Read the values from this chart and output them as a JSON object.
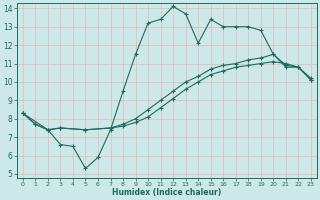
{
  "xlabel": "Humidex (Indice chaleur)",
  "bg_color": "#cce8e8",
  "grid_color": "#e8b8b8",
  "line_color": "#1e6b5e",
  "xlim": [
    -0.5,
    23.5
  ],
  "ylim": [
    4.8,
    14.3
  ],
  "xticks": [
    0,
    1,
    2,
    3,
    4,
    5,
    6,
    7,
    8,
    9,
    10,
    11,
    12,
    13,
    14,
    15,
    16,
    17,
    18,
    19,
    20,
    21,
    22,
    23
  ],
  "yticks": [
    5,
    6,
    7,
    8,
    9,
    10,
    11,
    12,
    13,
    14
  ],
  "line1_x": [
    0,
    1,
    2,
    3,
    4,
    5,
    6,
    7,
    8,
    9,
    10,
    11,
    12,
    13,
    14,
    15,
    16,
    17,
    18,
    19,
    20,
    21,
    22,
    23
  ],
  "line1_y": [
    8.3,
    7.7,
    7.4,
    6.6,
    6.5,
    5.3,
    5.9,
    7.4,
    9.5,
    11.5,
    13.2,
    13.4,
    14.1,
    13.7,
    12.1,
    13.4,
    13.0,
    13.0,
    13.0,
    12.8,
    11.5,
    10.8,
    10.8,
    10.1
  ],
  "line2_x": [
    0,
    1,
    2,
    3,
    5,
    7,
    8,
    9,
    10,
    11,
    12,
    13,
    14,
    15,
    16,
    17,
    18,
    19,
    20,
    21,
    22,
    23
  ],
  "line2_y": [
    8.3,
    7.7,
    7.4,
    7.5,
    7.4,
    7.5,
    7.7,
    8.0,
    8.5,
    9.0,
    9.5,
    10.0,
    10.3,
    10.7,
    10.9,
    11.0,
    11.2,
    11.3,
    11.5,
    10.9,
    10.8,
    10.1
  ],
  "line3_x": [
    0,
    2,
    3,
    5,
    7,
    8,
    9,
    10,
    11,
    12,
    13,
    14,
    15,
    16,
    17,
    18,
    19,
    20,
    21,
    22,
    23
  ],
  "line3_y": [
    8.3,
    7.4,
    7.5,
    7.4,
    7.5,
    7.6,
    7.8,
    8.1,
    8.6,
    9.1,
    9.6,
    10.0,
    10.4,
    10.6,
    10.8,
    10.9,
    11.0,
    11.1,
    11.0,
    10.8,
    10.2
  ]
}
